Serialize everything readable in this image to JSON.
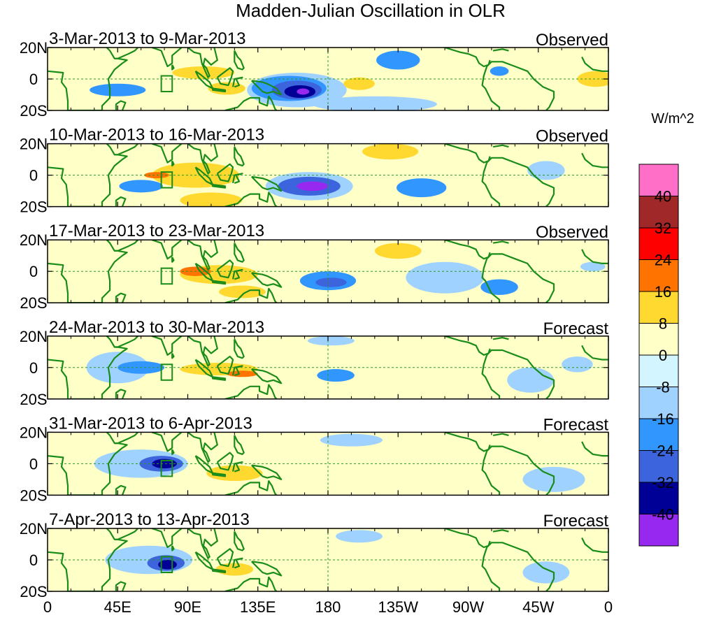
{
  "figure": {
    "title": "Madden-Julian Oscillation in OLR",
    "units": "W/m^2"
  },
  "lat_labels": [
    "20N",
    "0",
    "20S"
  ],
  "lon_labels": [
    "0",
    "45E",
    "90E",
    "135E",
    "180",
    "135W",
    "90W",
    "45W",
    "0"
  ],
  "panels": [
    {
      "period": "3-Mar-2013 to 9-Mar-2013",
      "kind": "Observed"
    },
    {
      "period": "10-Mar-2013 to 16-Mar-2013",
      "kind": "Observed"
    },
    {
      "period": "17-Mar-2013 to 23-Mar-2013",
      "kind": "Observed"
    },
    {
      "period": "24-Mar-2013 to 30-Mar-2013",
      "kind": "Forecast"
    },
    {
      "period": "31-Mar-2013 to 6-Apr-2013",
      "kind": "Forecast"
    },
    {
      "period": "7-Apr-2013 to 13-Apr-2013",
      "kind": "Forecast"
    }
  ],
  "colorbar": {
    "labels": [
      "40",
      "32",
      "24",
      "16",
      "8",
      "0",
      "-8",
      "-16",
      "-24",
      "-32",
      "-40"
    ],
    "colors": [
      "#ff6ec7",
      "#a02828",
      "#ff0000",
      "#ff7300",
      "#ffd930",
      "#ffffc8",
      "#d2f5ff",
      "#a0d2ff",
      "#3296ff",
      "#3c64dc",
      "#000096",
      "#9628f0"
    ]
  },
  "style": {
    "background": "#ffffc8",
    "land": "#1a8c1a",
    "axis": "#000000",
    "reference_line": "#2a9a2a"
  },
  "anomalies": [
    [
      {
        "lon": 100,
        "lat": 4,
        "rx": 20,
        "ry": 4,
        "v": 16
      },
      {
        "lon": 58,
        "lat": 6,
        "rx": 10,
        "ry": 3,
        "v": 8
      },
      {
        "lon": 115,
        "lat": -6,
        "rx": 12,
        "ry": 4,
        "v": 16
      },
      {
        "lon": 122,
        "lat": 9,
        "rx": 8,
        "ry": 3,
        "v": 8
      },
      {
        "lon": 200,
        "lat": -3,
        "rx": 10,
        "ry": 4,
        "v": 16
      },
      {
        "lon": 352,
        "lat": 0,
        "rx": 12,
        "ry": 5,
        "v": 16
      },
      {
        "lon": 298,
        "lat": -4,
        "rx": 15,
        "ry": 9,
        "v": 8
      },
      {
        "lon": 160,
        "lat": -7,
        "rx": 32,
        "ry": 11,
        "v": -8
      },
      {
        "lon": 155,
        "lat": -6,
        "rx": 24,
        "ry": 8,
        "v": -16
      },
      {
        "lon": 160,
        "lat": -7,
        "rx": 16,
        "ry": 6,
        "v": -24
      },
      {
        "lon": 162,
        "lat": -8,
        "rx": 10,
        "ry": 4,
        "v": -32
      },
      {
        "lon": 164,
        "lat": -8,
        "rx": 4,
        "ry": 2,
        "v": -40
      },
      {
        "lon": 225,
        "lat": 12,
        "rx": 14,
        "ry": 6,
        "v": -16
      },
      {
        "lon": 290,
        "lat": 5,
        "rx": 6,
        "ry": 3,
        "v": -16
      },
      {
        "lon": 45,
        "lat": -7,
        "rx": 18,
        "ry": 4,
        "v": -16
      },
      {
        "lon": 210,
        "lat": -16,
        "rx": 40,
        "ry": 5,
        "v": -8
      }
    ],
    [
      {
        "lon": 95,
        "lat": 0,
        "rx": 28,
        "ry": 8,
        "v": 16
      },
      {
        "lon": 70,
        "lat": 0,
        "rx": 8,
        "ry": 2,
        "v": 24
      },
      {
        "lon": 105,
        "lat": -16,
        "rx": 20,
        "ry": 5,
        "v": 16
      },
      {
        "lon": 10,
        "lat": 0,
        "rx": 12,
        "ry": 4,
        "v": 8
      },
      {
        "lon": 220,
        "lat": 15,
        "rx": 18,
        "ry": 5,
        "v": 16
      },
      {
        "lon": 345,
        "lat": 0,
        "rx": 10,
        "ry": 4,
        "v": 8
      },
      {
        "lon": 168,
        "lat": -7,
        "rx": 28,
        "ry": 9,
        "v": -8
      },
      {
        "lon": 168,
        "lat": -7,
        "rx": 20,
        "ry": 6,
        "v": -24
      },
      {
        "lon": 170,
        "lat": -7,
        "rx": 10,
        "ry": 3,
        "v": -40
      },
      {
        "lon": 240,
        "lat": -8,
        "rx": 16,
        "ry": 6,
        "v": -16
      },
      {
        "lon": 60,
        "lat": -7,
        "rx": 14,
        "ry": 4,
        "v": -16
      },
      {
        "lon": 320,
        "lat": 3,
        "rx": 12,
        "ry": 6,
        "v": -8
      }
    ],
    [
      {
        "lon": 110,
        "lat": -2,
        "rx": 25,
        "ry": 6,
        "v": 16
      },
      {
        "lon": 95,
        "lat": 0,
        "rx": 10,
        "ry": 3,
        "v": 24
      },
      {
        "lon": 125,
        "lat": -13,
        "rx": 15,
        "ry": 4,
        "v": 16
      },
      {
        "lon": 225,
        "lat": 13,
        "rx": 15,
        "ry": 5,
        "v": 16
      },
      {
        "lon": 60,
        "lat": -9,
        "rx": 8,
        "ry": 3,
        "v": 8
      },
      {
        "lon": 180,
        "lat": -6,
        "rx": 18,
        "ry": 6,
        "v": -16
      },
      {
        "lon": 182,
        "lat": -7,
        "rx": 10,
        "ry": 3,
        "v": -24
      },
      {
        "lon": 290,
        "lat": -10,
        "rx": 12,
        "ry": 5,
        "v": -16
      },
      {
        "lon": 255,
        "lat": -4,
        "rx": 25,
        "ry": 10,
        "v": -8
      },
      {
        "lon": 350,
        "lat": 3,
        "rx": 8,
        "ry": 3,
        "v": -8
      }
    ],
    [
      {
        "lon": 110,
        "lat": -1,
        "rx": 25,
        "ry": 4,
        "v": 16
      },
      {
        "lon": 125,
        "lat": -4,
        "rx": 10,
        "ry": 2,
        "v": 24
      },
      {
        "lon": 230,
        "lat": 10,
        "rx": 25,
        "ry": 6,
        "v": 8
      },
      {
        "lon": 60,
        "lat": 0,
        "rx": 15,
        "ry": 4,
        "v": -16
      },
      {
        "lon": 45,
        "lat": 0,
        "rx": 20,
        "ry": 10,
        "v": -8
      },
      {
        "lon": 185,
        "lat": -5,
        "rx": 12,
        "ry": 4,
        "v": -16
      },
      {
        "lon": 182,
        "lat": 17,
        "rx": 15,
        "ry": 3,
        "v": -8
      },
      {
        "lon": 310,
        "lat": -8,
        "rx": 15,
        "ry": 8,
        "v": -8
      },
      {
        "lon": 340,
        "lat": 2,
        "rx": 10,
        "ry": 5,
        "v": -8
      }
    ],
    [
      {
        "lon": 120,
        "lat": -6,
        "rx": 18,
        "ry": 5,
        "v": 16
      },
      {
        "lon": 90,
        "lat": -14,
        "rx": 12,
        "ry": 4,
        "v": 8
      },
      {
        "lon": 270,
        "lat": 4,
        "rx": 25,
        "ry": 5,
        "v": 8
      },
      {
        "lon": 73,
        "lat": 0,
        "rx": 14,
        "ry": 5,
        "v": -24
      },
      {
        "lon": 75,
        "lat": 0,
        "rx": 8,
        "ry": 3,
        "v": -32
      },
      {
        "lon": 60,
        "lat": 0,
        "rx": 30,
        "ry": 9,
        "v": -8
      },
      {
        "lon": 195,
        "lat": 15,
        "rx": 20,
        "ry": 4,
        "v": -8
      },
      {
        "lon": 325,
        "lat": -10,
        "rx": 20,
        "ry": 8,
        "v": -8
      }
    ],
    [
      {
        "lon": 120,
        "lat": -6,
        "rx": 12,
        "ry": 4,
        "v": 16
      },
      {
        "lon": 95,
        "lat": -14,
        "rx": 12,
        "ry": 4,
        "v": 8
      },
      {
        "lon": 350,
        "lat": 12,
        "rx": 10,
        "ry": 5,
        "v": 8
      },
      {
        "lon": 240,
        "lat": 10,
        "rx": 20,
        "ry": 5,
        "v": 8
      },
      {
        "lon": 76,
        "lat": -2,
        "rx": 12,
        "ry": 5,
        "v": -24
      },
      {
        "lon": 77,
        "lat": -3,
        "rx": 6,
        "ry": 3,
        "v": -32
      },
      {
        "lon": 65,
        "lat": 0,
        "rx": 28,
        "ry": 9,
        "v": -8
      },
      {
        "lon": 200,
        "lat": 15,
        "rx": 15,
        "ry": 4,
        "v": -8
      },
      {
        "lon": 320,
        "lat": -8,
        "rx": 15,
        "ry": 7,
        "v": -8
      }
    ]
  ],
  "coastlines": [
    {
      "name": "africa",
      "pts": [
        [
          0,
          5
        ],
        [
          10,
          4
        ],
        [
          9,
          -2
        ],
        [
          12,
          -6
        ],
        [
          13,
          -14
        ],
        [
          13,
          -20
        ],
        [
          25,
          -20
        ],
        [
          35,
          -20
        ],
        [
          35,
          -17
        ],
        [
          40,
          -12
        ],
        [
          40,
          -6
        ],
        [
          39,
          0
        ],
        [
          43,
          6
        ],
        [
          48,
          10
        ],
        [
          51,
          12
        ],
        [
          45,
          13
        ],
        [
          43,
          13
        ],
        [
          40,
          18
        ],
        [
          38,
          20
        ]
      ]
    },
    {
      "name": "madagascar",
      "pts": [
        [
          44,
          -20
        ],
        [
          44,
          -16
        ],
        [
          47,
          -14
        ],
        [
          50,
          -15
        ],
        [
          48,
          -20
        ]
      ]
    },
    {
      "name": "arabia",
      "pts": [
        [
          43,
          13
        ],
        [
          45,
          13
        ],
        [
          52,
          16
        ],
        [
          56,
          18
        ],
        [
          58,
          20
        ]
      ]
    },
    {
      "name": "india",
      "pts": [
        [
          67,
          20
        ],
        [
          73,
          18
        ],
        [
          77,
          8
        ],
        [
          80,
          10
        ],
        [
          80,
          15
        ],
        [
          86,
          20
        ]
      ]
    },
    {
      "name": "sri-lanka",
      "pts": [
        [
          80,
          9
        ],
        [
          81,
          7
        ],
        [
          80,
          6
        ],
        [
          80,
          9
        ]
      ]
    },
    {
      "name": "mainland-se-asia",
      "pts": [
        [
          90,
          20
        ],
        [
          94,
          17
        ],
        [
          98,
          16
        ],
        [
          99,
          10
        ],
        [
          103,
          1
        ],
        [
          104,
          2
        ],
        [
          102,
          7
        ],
        [
          100,
          9
        ],
        [
          101,
          13
        ],
        [
          105,
          9
        ],
        [
          109,
          12
        ],
        [
          108,
          16
        ],
        [
          107,
          20
        ]
      ]
    },
    {
      "name": "sumatra",
      "pts": [
        [
          95,
          5
        ],
        [
          98,
          3
        ],
        [
          104,
          -2
        ],
        [
          106,
          -6
        ],
        [
          102,
          -4
        ],
        [
          97,
          1
        ],
        [
          95,
          5
        ]
      ]
    },
    {
      "name": "java",
      "pts": [
        [
          106,
          -6
        ],
        [
          114,
          -7
        ],
        [
          114,
          -8
        ],
        [
          106,
          -7
        ],
        [
          106,
          -6
        ]
      ]
    },
    {
      "name": "borneo",
      "pts": [
        [
          109,
          1
        ],
        [
          113,
          4
        ],
        [
          117,
          7
        ],
        [
          119,
          5
        ],
        [
          118,
          1
        ],
        [
          116,
          -4
        ],
        [
          111,
          -3
        ],
        [
          109,
          1
        ]
      ]
    },
    {
      "name": "sulawesi",
      "pts": [
        [
          119,
          -5
        ],
        [
          120,
          0
        ],
        [
          125,
          1
        ],
        [
          121,
          0
        ],
        [
          123,
          -4
        ],
        [
          120,
          -5
        ]
      ]
    },
    {
      "name": "philippines",
      "pts": [
        [
          120,
          18
        ],
        [
          122,
          14
        ],
        [
          124,
          12
        ],
        [
          126,
          7
        ],
        [
          125,
          6
        ],
        [
          122,
          7
        ],
        [
          120,
          11
        ],
        [
          120,
          18
        ]
      ]
    },
    {
      "name": "new-guinea",
      "pts": [
        [
          131,
          -1
        ],
        [
          138,
          -2
        ],
        [
          141,
          -3
        ],
        [
          147,
          -6
        ],
        [
          150,
          -10
        ],
        [
          145,
          -8
        ],
        [
          141,
          -9
        ],
        [
          138,
          -8
        ],
        [
          134,
          -4
        ],
        [
          131,
          -1
        ]
      ]
    },
    {
      "name": "australia-north",
      "pts": [
        [
          114,
          -20
        ],
        [
          122,
          -18
        ],
        [
          126,
          -14
        ],
        [
          130,
          -12
        ],
        [
          136,
          -12
        ],
        [
          136,
          -15
        ],
        [
          141,
          -17
        ],
        [
          142,
          -11
        ],
        [
          144,
          -14
        ],
        [
          146,
          -19
        ],
        [
          147,
          -20
        ]
      ]
    },
    {
      "name": "central-america",
      "pts": [
        [
          255,
          20
        ],
        [
          265,
          17
        ],
        [
          270,
          16
        ],
        [
          275,
          14
        ],
        [
          277,
          10
        ],
        [
          280,
          8
        ],
        [
          283,
          9
        ],
        [
          284,
          12
        ]
      ]
    },
    {
      "name": "south-america",
      "pts": [
        [
          282,
          8
        ],
        [
          285,
          11
        ],
        [
          292,
          11
        ],
        [
          300,
          8
        ],
        [
          308,
          5
        ],
        [
          312,
          0
        ],
        [
          318,
          -5
        ],
        [
          325,
          -8
        ],
        [
          325,
          -12
        ],
        [
          322,
          -18
        ],
        [
          320,
          -20
        ]
      ]
    },
    {
      "name": "south-america-west",
      "pts": [
        [
          282,
          8
        ],
        [
          280,
          2
        ],
        [
          279,
          -4
        ],
        [
          281,
          -6
        ],
        [
          285,
          -14
        ],
        [
          290,
          -18
        ],
        [
          290,
          -20
        ]
      ]
    },
    {
      "name": "west-africa",
      "pts": [
        [
          343,
          14
        ],
        [
          345,
          10
        ],
        [
          350,
          6
        ],
        [
          356,
          5
        ],
        [
          360,
          5
        ]
      ]
    },
    {
      "name": "caribbean",
      "pts": [
        [
          286,
          18
        ],
        [
          292,
          19
        ],
        [
          296,
          18
        ]
      ]
    }
  ]
}
